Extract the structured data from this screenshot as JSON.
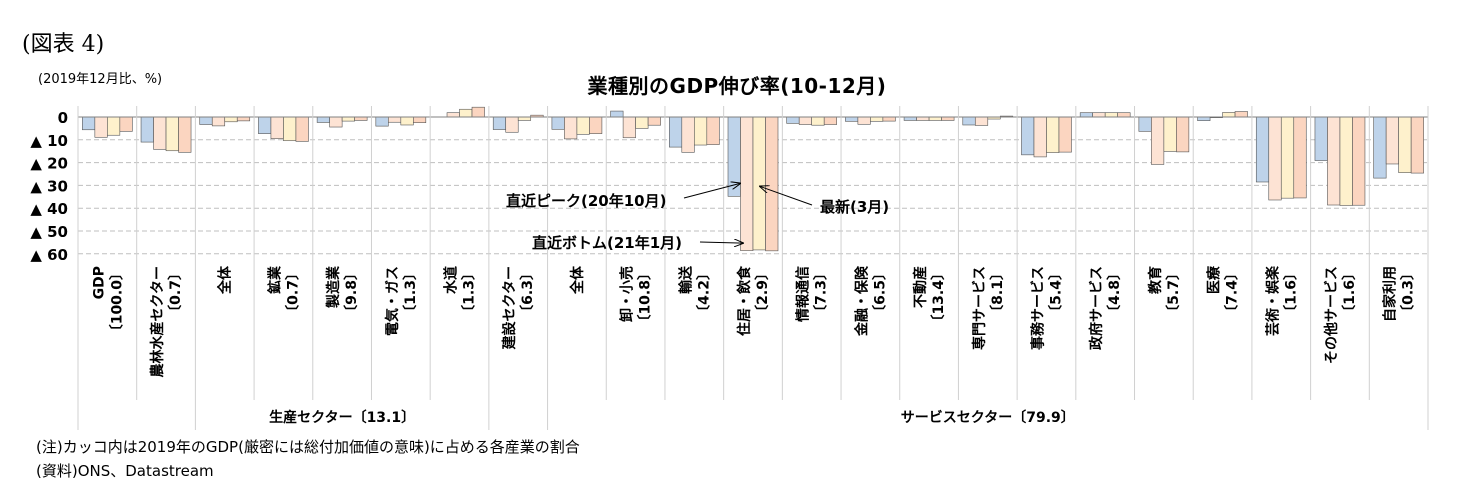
{
  "figure_label": "(図表 4)",
  "unit_note": "(2019年12月比、%)",
  "notes": {
    "note": "(注)カッコ内は2019年のGDP(厳密には総付加価値の意味)に占める各産業の割合",
    "source": "(資料)ONS、Datastream"
  },
  "chart_data": {
    "type": "bar",
    "title": "業種別のGDP伸び率(10-12月)",
    "y_tick_labels": [
      "0",
      "▲ 10",
      "▲ 20",
      "▲ 30",
      "▲ 40",
      "▲ 50",
      "▲ 60"
    ],
    "ylim": [
      -60,
      0
    ],
    "y_ticks": [
      0,
      -10,
      -20,
      -30,
      -40,
      -50,
      -60
    ],
    "grid": true,
    "series": [
      {
        "color": "#bed3ea",
        "values": [
          -5.6,
          -11.0,
          -3.3,
          -7.3,
          -2.4,
          -4.0,
          0.0,
          -5.5,
          -5.4,
          2.6,
          -13.2,
          -34.8,
          -2.8,
          -1.9,
          -1.5,
          -3.5,
          -16.6,
          1.9,
          -6.3,
          -1.6,
          -28.5,
          -19.1,
          -26.8
        ]
      },
      {
        "color": "#fde3d4",
        "values": [
          -8.9,
          -14.2,
          -3.9,
          -9.5,
          -4.4,
          -2.3,
          1.9,
          -6.7,
          -9.6,
          -9.1,
          -15.5,
          -58.6,
          -3.3,
          -3.2,
          -1.5,
          -3.7,
          -17.5,
          1.9,
          -20.8,
          -0.3,
          -36.4,
          -38.6,
          -20.6
        ]
      },
      {
        "color": "#fef1cc",
        "values": [
          -8.0,
          -14.8,
          -2.1,
          -10.4,
          -1.8,
          -3.5,
          3.4,
          -1.5,
          -7.6,
          -5.0,
          -12.3,
          -58.3,
          -3.6,
          -1.9,
          -1.5,
          -0.9,
          -15.6,
          1.9,
          -15.1,
          2.0,
          -35.6,
          -38.8,
          -24.4
        ]
      },
      {
        "color": "#fbd5c0",
        "values": [
          -6.3,
          -15.5,
          -1.7,
          -10.7,
          -1.5,
          -2.5,
          4.3,
          0.8,
          -7.3,
          -3.6,
          -12.1,
          -58.7,
          -3.3,
          -1.8,
          -1.5,
          0.4,
          -15.4,
          1.9,
          -15.3,
          2.4,
          -35.5,
          -38.7,
          -24.6
        ]
      }
    ],
    "categories": [
      {
        "name": "GDP",
        "share": "〔100.0〕"
      },
      {
        "name": "農林水産セクター",
        "share": "〔0.7〕"
      },
      {
        "name": "全体",
        "share": ""
      },
      {
        "name": "鉱業",
        "share": "〔0.7〕"
      },
      {
        "name": "製造業",
        "share": "〔9.8〕"
      },
      {
        "name": "電気・ガス",
        "share": "〔1.3〕"
      },
      {
        "name": "水道",
        "share": "〔1.3〕"
      },
      {
        "name": "建設セクター",
        "share": "〔6.3〕"
      },
      {
        "name": "全体",
        "share": ""
      },
      {
        "name": "卸・小売",
        "share": "〔10.8〕"
      },
      {
        "name": "輸送",
        "share": "〔4.2〕"
      },
      {
        "name": "住居・飲食",
        "share": "〔2.9〕"
      },
      {
        "name": "情報通信",
        "share": "〔7.3〕"
      },
      {
        "name": "金融・保険",
        "share": "〔6.5〕"
      },
      {
        "name": "不動産",
        "share": "〔13.4〕"
      },
      {
        "name": "専門サービス",
        "share": "〔8.1〕"
      },
      {
        "name": "事務サービス",
        "share": "〔5.4〕"
      },
      {
        "name": "政府サービス",
        "share": "〔4.8〕"
      },
      {
        "name": "教育",
        "share": "〔5.7〕"
      },
      {
        "name": "医療",
        "share": "〔7.4〕"
      },
      {
        "name": "芸術・娯楽",
        "share": "〔1.6〕"
      },
      {
        "name": "その他サービス",
        "share": "〔1.6〕"
      },
      {
        "name": "自家利用",
        "share": "〔0.3〕"
      }
    ],
    "groups": [
      {
        "label": "生産セクター〔13.1〕",
        "start": 2,
        "end": 6
      },
      {
        "label": "サービスセクター〔79.9〕",
        "start": 8,
        "end": 22
      }
    ],
    "annotations": [
      {
        "text": "直近ピーク(20年10月)",
        "category_index": 11,
        "value": -30
      },
      {
        "text": "最新(3月)",
        "category_index": 11,
        "value": -30
      },
      {
        "text": "直近ボトム(21年1月)",
        "category_index": 11,
        "value": -54
      }
    ]
  }
}
